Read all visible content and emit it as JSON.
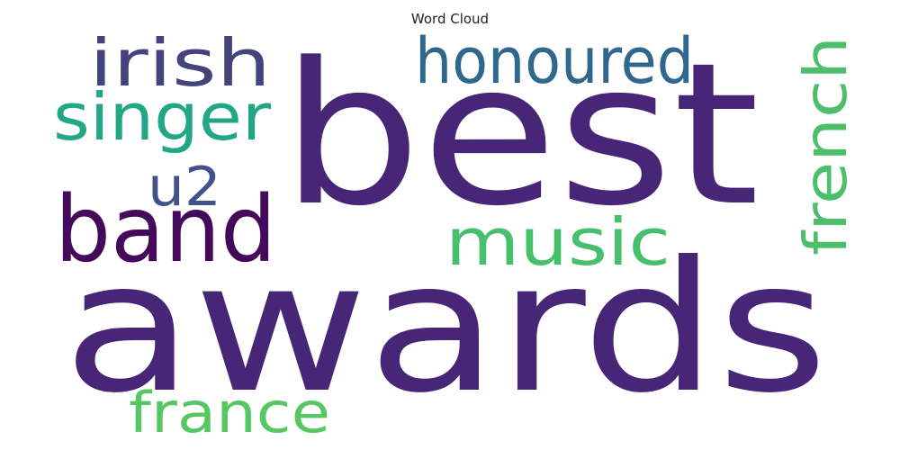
{
  "title": "Word Cloud",
  "words": [
    {
      "text": "best",
      "color": "#472677"
    },
    {
      "text": "awards",
      "color": "#472677"
    },
    {
      "text": "band",
      "color": "#44095a"
    },
    {
      "text": "irish",
      "color": "#45437d"
    },
    {
      "text": "honoured",
      "color": "#30688d"
    },
    {
      "text": "singer",
      "color": "#21a686"
    },
    {
      "text": "u2",
      "color": "#40538b"
    },
    {
      "text": "music",
      "color": "#47c06e"
    },
    {
      "text": "french",
      "color": "#4dbf6c"
    },
    {
      "text": "france",
      "color": "#57c764"
    }
  ]
}
